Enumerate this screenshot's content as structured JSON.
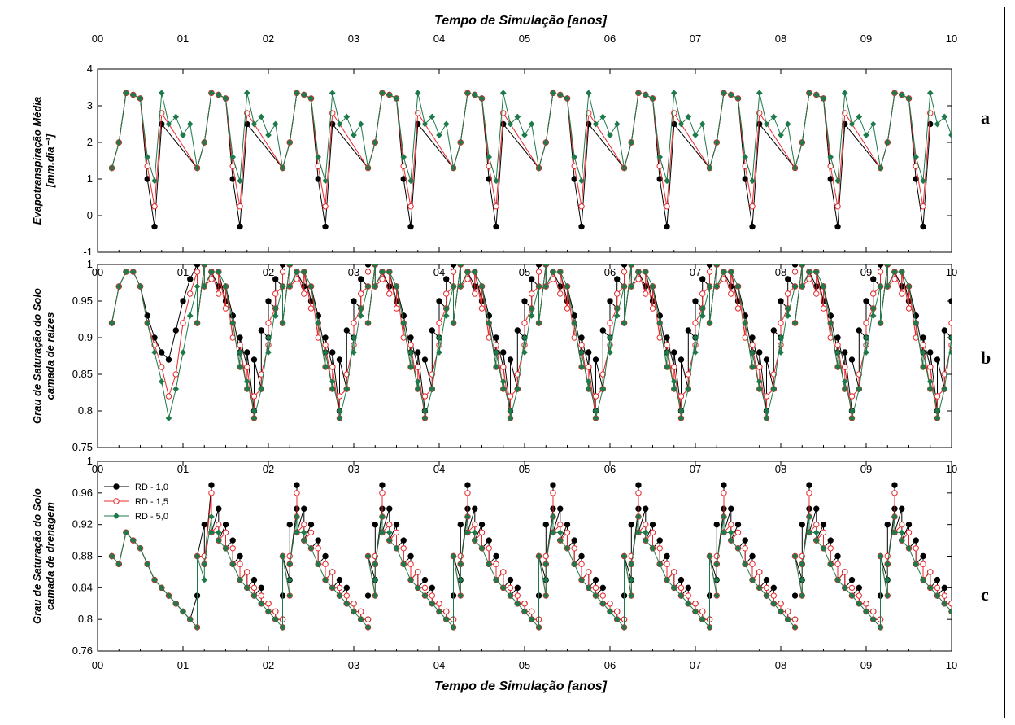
{
  "figure": {
    "top_axis_title": "Tempo de Simulação [anos]",
    "bottom_axis_title": "Tempo de Simulação [anos]",
    "x_tick_labels": [
      "00",
      "01",
      "02",
      "03",
      "04",
      "05",
      "06",
      "07",
      "08",
      "09",
      "10"
    ]
  },
  "colors": {
    "rd_1_0": "#000000",
    "rd_1_5": "#e8282a",
    "rd_5_0": "#1e7a4a"
  },
  "chart_data": [
    {
      "type": "line",
      "panel_letter": "a",
      "ylabel_line1": "Evapotranspiração Média",
      "ylabel_line2": "[mm.dia⁻¹]",
      "ylim": [
        -1,
        4
      ],
      "yticks": [
        "-1",
        "0",
        "1",
        "2",
        "3",
        "4"
      ],
      "xlim": [
        0,
        10
      ],
      "series": [
        {
          "key": "rd_1_0",
          "marker": "circle-filled",
          "x": [
            0.167,
            0.25,
            0.333,
            0.417,
            0.5,
            0.583,
            0.667,
            0.75
          ],
          "y": [
            1.3,
            2.0,
            3.35,
            3.3,
            3.2,
            1.0,
            -0.3,
            2.5
          ]
        },
        {
          "key": "rd_1_5",
          "marker": "circle-open",
          "x": [
            0.167,
            0.25,
            0.333,
            0.417,
            0.5,
            0.583,
            0.667,
            0.75
          ],
          "y": [
            1.3,
            2.0,
            3.35,
            3.3,
            3.2,
            1.35,
            0.25,
            2.8
          ]
        },
        {
          "key": "rd_5_0",
          "marker": "diamond",
          "x": [
            0.167,
            0.25,
            0.333,
            0.417,
            0.5,
            0.583,
            0.667,
            0.75,
            0.833,
            0.917,
            1.0,
            1.083
          ],
          "y": [
            1.3,
            2.0,
            3.35,
            3.3,
            3.2,
            1.6,
            0.95,
            3.35,
            2.5,
            2.7,
            2.2,
            2.5
          ]
        }
      ],
      "periodic": true
    },
    {
      "type": "line",
      "panel_letter": "b",
      "ylabel_line1": "Grau de Saturação do Solo",
      "ylabel_line2": "camada de raízes",
      "ylim": [
        0.75,
        1.0
      ],
      "yticks": [
        "0.75",
        "0.8",
        "0.85",
        "0.9",
        "0.95",
        "1"
      ],
      "xlim": [
        0,
        10
      ],
      "series": [
        {
          "key": "rd_1_0",
          "marker": "circle-filled",
          "x": [
            0.167,
            0.25,
            0.333,
            0.417,
            0.5,
            0.583,
            0.667,
            0.75,
            0.833,
            0.917,
            1.0,
            1.083,
            1.167,
            1.25,
            1.333,
            1.417,
            1.5,
            1.583,
            1.667,
            1.75,
            1.833,
            1.917,
            2.0,
            2.083,
            2.167,
            2.25
          ],
          "y": [
            0.92,
            0.97,
            0.99,
            0.99,
            0.97,
            0.93,
            0.9,
            0.88,
            0.87,
            0.91,
            0.95,
            0.98,
            1.0,
            1.0,
            0.99,
            0.97,
            0.95,
            0.93,
            0.88,
            0.86,
            0.8,
            0.83,
            0.9,
            0.94,
            0.97,
            1.0
          ]
        },
        {
          "key": "rd_1_5",
          "marker": "circle-open",
          "x": [
            0.167,
            0.25,
            0.333,
            0.417,
            0.5,
            0.583,
            0.667,
            0.75,
            0.833,
            0.917,
            1.0,
            1.083,
            1.167,
            1.25,
            1.333,
            1.417,
            1.5,
            1.583,
            1.667,
            1.75,
            1.833,
            1.917,
            2.0,
            2.083,
            2.167,
            2.25
          ],
          "y": [
            0.92,
            0.97,
            0.99,
            0.99,
            0.97,
            0.92,
            0.89,
            0.86,
            0.82,
            0.85,
            0.92,
            0.96,
            0.99,
            1.0,
            0.98,
            0.96,
            0.94,
            0.9,
            0.86,
            0.83,
            0.79,
            0.83,
            0.89,
            0.94,
            0.97,
            1.0
          ]
        },
        {
          "key": "rd_5_0",
          "marker": "diamond",
          "x": [
            0.167,
            0.25,
            0.333,
            0.417,
            0.5,
            0.583,
            0.667,
            0.75,
            0.833,
            0.917,
            1.0,
            1.083,
            1.167,
            1.25,
            1.333,
            1.417,
            1.5,
            1.583,
            1.667,
            1.75,
            1.833,
            1.917,
            2.0,
            2.083,
            2.167,
            2.25
          ],
          "y": [
            0.92,
            0.97,
            0.99,
            0.99,
            0.97,
            0.92,
            0.88,
            0.84,
            0.79,
            0.83,
            0.88,
            0.93,
            0.97,
            1.0,
            0.99,
            0.99,
            0.97,
            0.92,
            0.86,
            0.83,
            0.8,
            0.83,
            0.9,
            0.94,
            0.97,
            1.0
          ]
        }
      ],
      "periodic": true
    },
    {
      "type": "line",
      "panel_letter": "c",
      "ylabel_line1": "Grau de Saturação do Solo",
      "ylabel_line2": "camada de drenagem",
      "ylim": [
        0.76,
        1.0
      ],
      "yticks": [
        "0.76",
        "0.8",
        "0.84",
        "0.88",
        "0.92",
        "0.96",
        "1"
      ],
      "xlim": [
        0,
        10
      ],
      "legend": [
        {
          "key": "rd_1_0",
          "label": "RD - 1,0",
          "marker": "circle-filled"
        },
        {
          "key": "rd_1_5",
          "label": "RD - 1,5",
          "marker": "circle-open"
        },
        {
          "key": "rd_5_0",
          "label": "RD - 5,0",
          "marker": "diamond"
        }
      ],
      "series": [
        {
          "key": "rd_1_0",
          "marker": "circle-filled",
          "x": [
            0.167,
            0.25,
            0.333,
            0.417,
            0.5,
            0.583,
            0.667,
            0.75,
            0.833,
            0.917,
            1.0,
            1.083,
            1.167,
            1.25,
            1.333,
            1.417,
            1.5,
            1.583,
            1.667,
            1.75,
            1.833,
            1.917,
            2.0,
            2.083,
            2.167,
            2.25,
            2.333
          ],
          "y": [
            0.88,
            0.87,
            0.91,
            0.9,
            0.89,
            0.87,
            0.85,
            0.84,
            0.83,
            0.82,
            0.81,
            0.8,
            0.83,
            0.92,
            0.97,
            0.94,
            0.92,
            0.9,
            0.88,
            0.86,
            0.85,
            0.84,
            0.82,
            0.81,
            0.8,
            0.85,
            0.94
          ]
        },
        {
          "key": "rd_1_5",
          "marker": "circle-open",
          "x": [
            0.167,
            0.25,
            0.333,
            0.417,
            0.5,
            0.583,
            0.667,
            0.75,
            0.833,
            0.917,
            1.0,
            1.083,
            1.167,
            1.25,
            1.333,
            1.417,
            1.5,
            1.583,
            1.667,
            1.75,
            1.833,
            1.917,
            2.0,
            2.083,
            2.167,
            2.25,
            2.333
          ],
          "y": [
            0.88,
            0.87,
            0.91,
            0.9,
            0.89,
            0.87,
            0.85,
            0.84,
            0.83,
            0.82,
            0.81,
            0.8,
            0.79,
            0.88,
            0.96,
            0.92,
            0.91,
            0.89,
            0.87,
            0.86,
            0.84,
            0.83,
            0.82,
            0.81,
            0.8,
            0.83,
            0.93
          ]
        },
        {
          "key": "rd_5_0",
          "marker": "diamond",
          "x": [
            0.167,
            0.25,
            0.333,
            0.417,
            0.5,
            0.583,
            0.667,
            0.75,
            0.833,
            0.917,
            1.0,
            1.083,
            1.167,
            1.25,
            1.333,
            1.417,
            1.5,
            1.583,
            1.667,
            1.75,
            1.833,
            1.917,
            2.0,
            2.083,
            2.167,
            2.25,
            2.333
          ],
          "y": [
            0.88,
            0.87,
            0.91,
            0.9,
            0.89,
            0.87,
            0.85,
            0.84,
            0.83,
            0.82,
            0.81,
            0.8,
            0.79,
            0.85,
            0.93,
            0.91,
            0.89,
            0.87,
            0.85,
            0.84,
            0.83,
            0.82,
            0.81,
            0.8,
            0.79,
            0.83,
            0.93
          ]
        }
      ],
      "periodic": true
    }
  ]
}
